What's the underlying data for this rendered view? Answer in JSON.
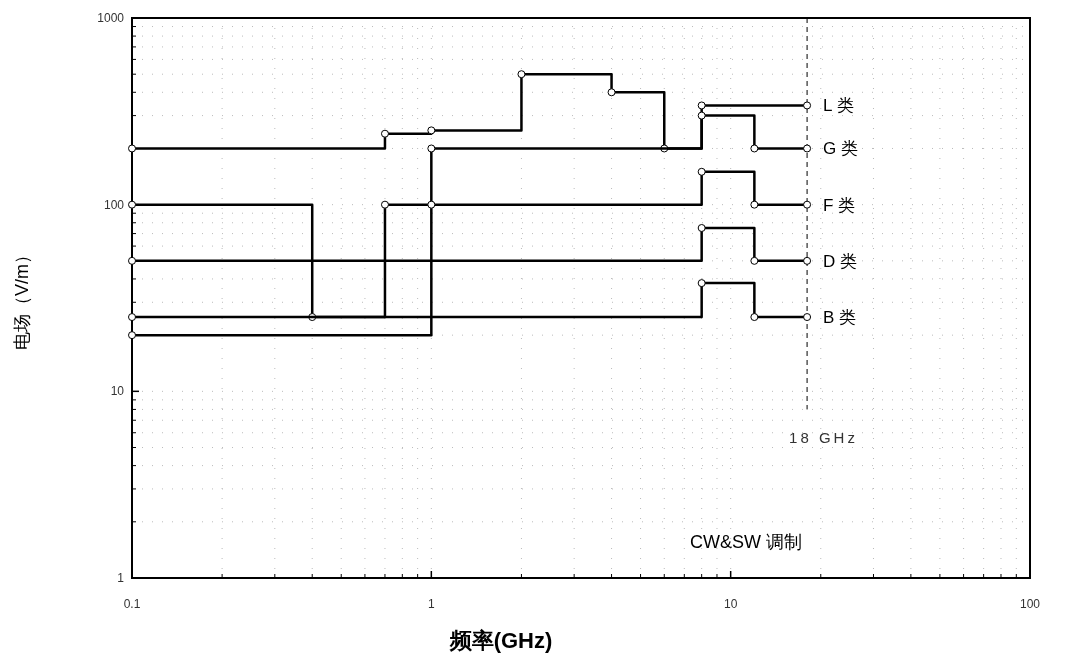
{
  "chart_data": {
    "type": "step",
    "xlabel": "频率(GHz)",
    "ylabel": "电场（V/m）",
    "log": "xy",
    "xlim": [
      0.1,
      100
    ],
    "ylim": [
      1,
      1000
    ],
    "xticks": [
      0.1,
      1,
      10,
      100
    ],
    "yticks": [
      1,
      10,
      100,
      1000
    ],
    "grid": true,
    "marker": "circle",
    "line_style": "solid",
    "series": [
      {
        "name": "L 类",
        "color": "#000000",
        "x": [
          0.1,
          0.7,
          1,
          2,
          4,
          6,
          8,
          18
        ],
        "values": [
          200,
          240,
          250,
          500,
          400,
          200,
          340,
          340
        ]
      },
      {
        "name": "G 类",
        "color": "#000000",
        "x": [
          0.1,
          0.4,
          0.7,
          1,
          8,
          12,
          18
        ],
        "values": [
          100,
          25,
          100,
          200,
          300,
          200,
          200
        ]
      },
      {
        "name": "F 类",
        "color": "#000000",
        "x": [
          0.1,
          1,
          8,
          12,
          18
        ],
        "values": [
          20,
          100,
          150,
          100,
          100
        ]
      },
      {
        "name": "D 类",
        "color": "#000000",
        "x": [
          0.1,
          8,
          12,
          18
        ],
        "values": [
          50,
          75,
          50,
          50
        ]
      },
      {
        "name": "B 类",
        "color": "#000000",
        "x": [
          0.1,
          8,
          12,
          18
        ],
        "values": [
          25,
          38,
          25,
          25
        ]
      }
    ],
    "ref_lines": [
      {
        "axis": "x",
        "value": 18,
        "label": "18 GHz",
        "line_style": "dashed"
      }
    ],
    "annotations": [
      "CW&SW 调制"
    ]
  }
}
